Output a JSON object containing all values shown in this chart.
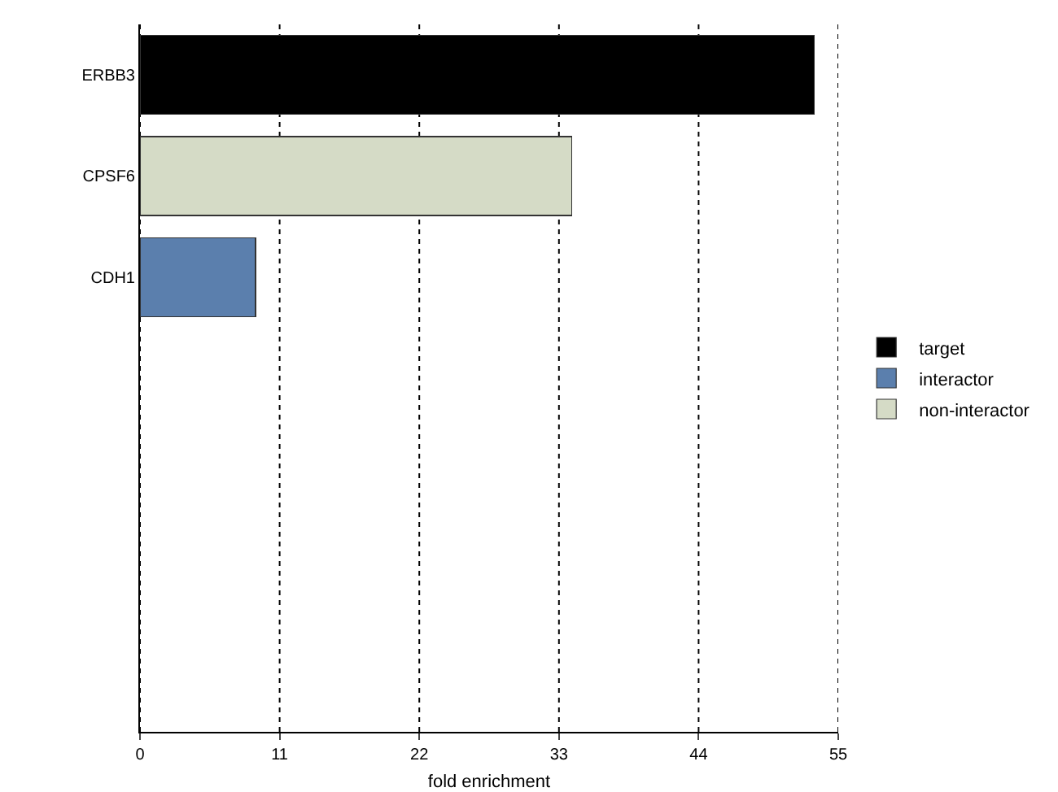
{
  "chart_data": {
    "type": "bar",
    "orientation": "horizontal",
    "stacked": true,
    "xlabel": "fold enrichment",
    "categories": [
      "ERBB3",
      "CPSF6",
      "CDH1",
      null,
      null,
      null,
      null
    ],
    "series": [
      {
        "name": "target",
        "color": "#000000",
        "values": [
          53.1,
          null,
          null,
          null,
          null,
          null,
          null
        ]
      },
      {
        "name": "interactor",
        "color": "#5b7fad",
        "values": [
          null,
          null,
          9.1,
          null,
          null,
          null,
          null
        ]
      },
      {
        "name": "non-interactor",
        "color": "#d5dbc6",
        "values": [
          null,
          34.0,
          null,
          null,
          null,
          null,
          null
        ]
      }
    ],
    "xlim": [
      0,
      55
    ],
    "xticks": [
      0,
      11,
      22,
      33,
      44,
      55
    ],
    "grid": "x",
    "legend": "right"
  }
}
